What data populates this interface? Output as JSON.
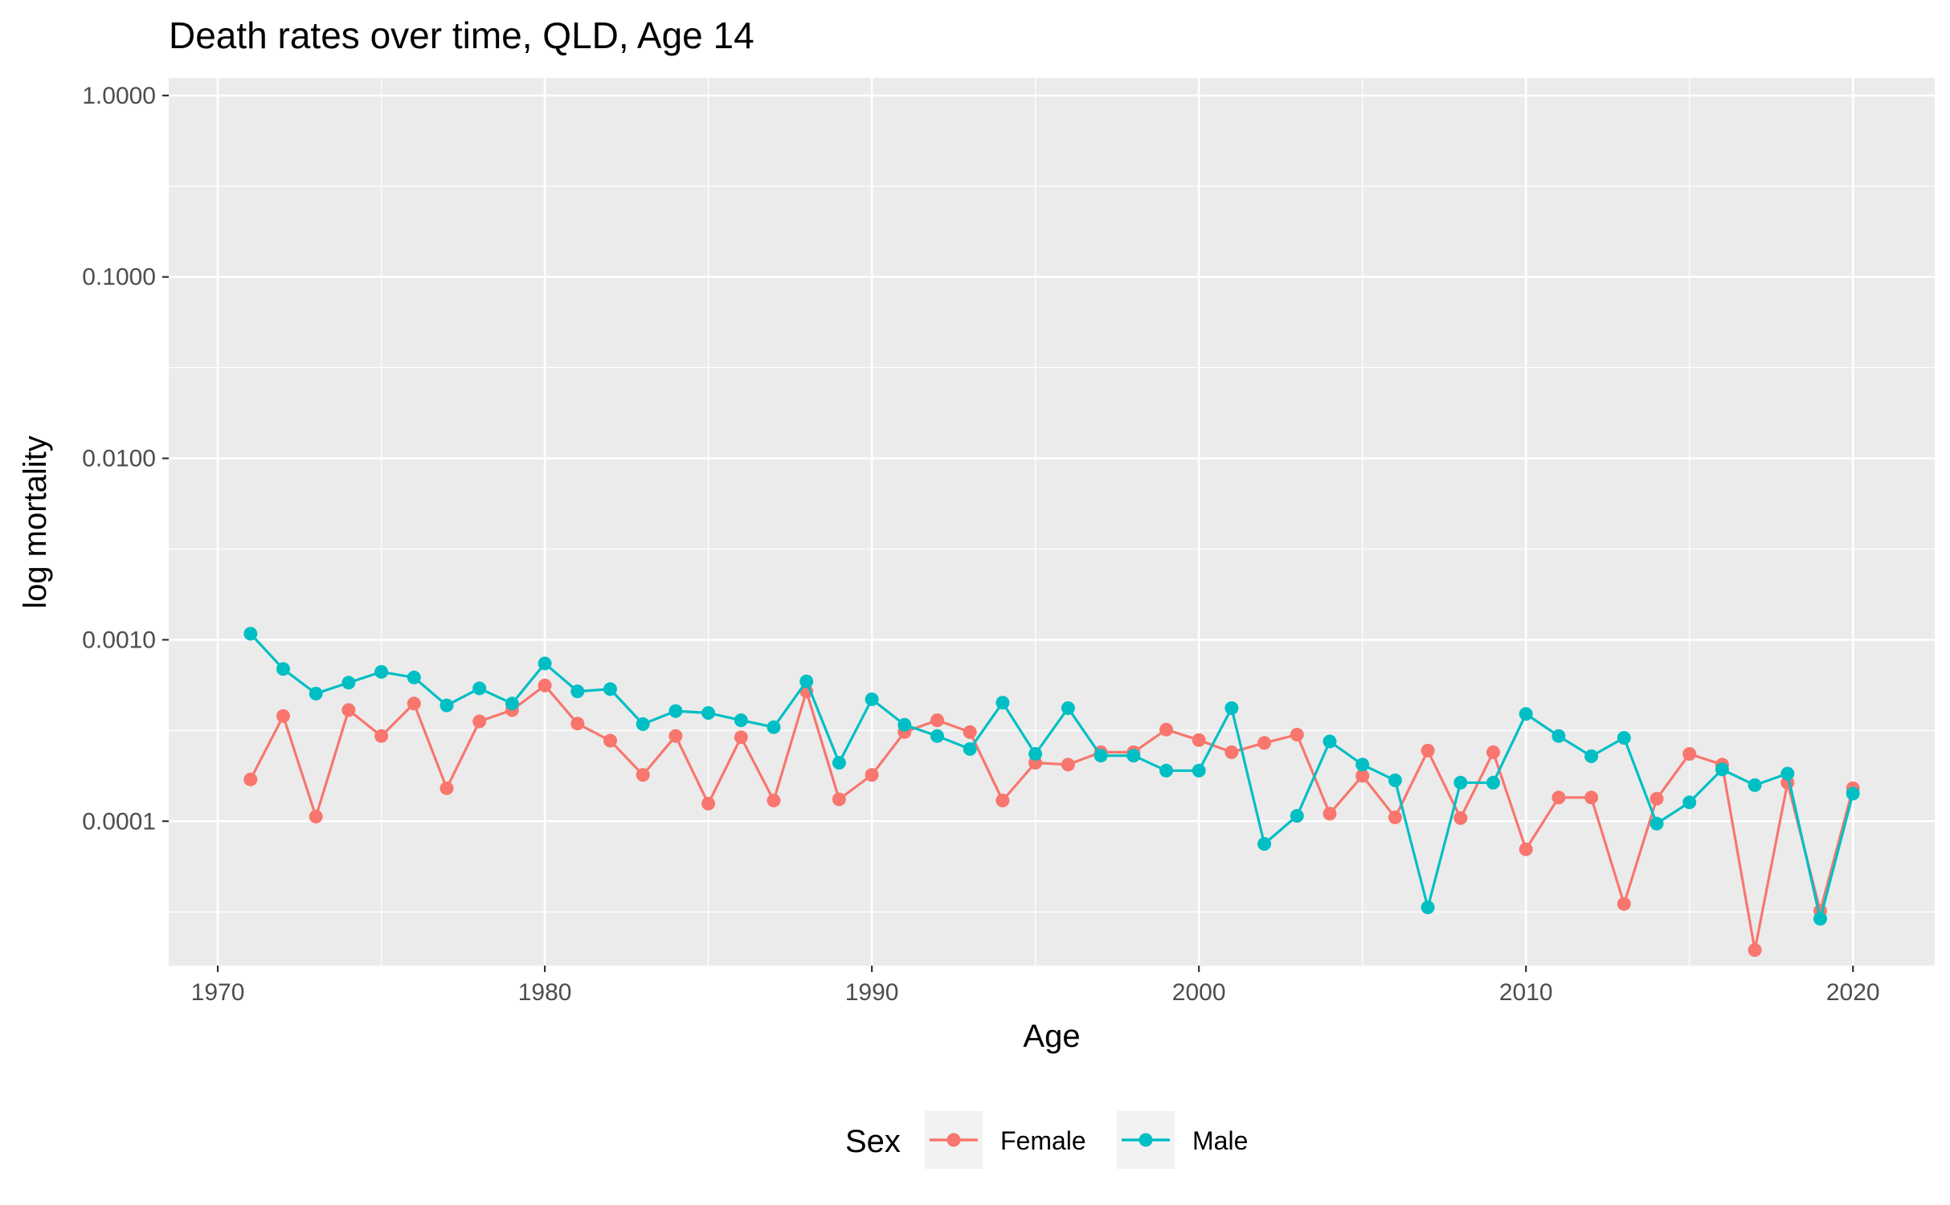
{
  "chart_data": {
    "type": "line",
    "title": "Death rates over time, QLD, Age 14",
    "xlabel": "Age",
    "ylabel": "log mortality",
    "y_scale": "log10",
    "xlim": [
      1968.5,
      2022.5
    ],
    "ylim": [
      1.6e-05,
      1.25
    ],
    "x_ticks": [
      1970,
      1980,
      1990,
      2000,
      2010,
      2020
    ],
    "x_tick_labels": [
      "1970",
      "1980",
      "1990",
      "2000",
      "2010",
      "2020"
    ],
    "y_ticks": [
      0.0001,
      0.001,
      0.01,
      0.1,
      1
    ],
    "y_tick_labels": [
      "0.0001",
      "0.0010",
      "0.0100",
      "0.1000",
      "1.0000"
    ],
    "grid": true,
    "legend": {
      "title": "Sex",
      "position": "bottom"
    },
    "x": [
      1971,
      1972,
      1973,
      1974,
      1975,
      1976,
      1977,
      1978,
      1979,
      1980,
      1981,
      1982,
      1983,
      1984,
      1985,
      1986,
      1987,
      1988,
      1989,
      1990,
      1991,
      1992,
      1993,
      1994,
      1995,
      1996,
      1997,
      1998,
      1999,
      2000,
      2001,
      2002,
      2003,
      2004,
      2005,
      2006,
      2007,
      2008,
      2009,
      2010,
      2011,
      2012,
      2013,
      2014,
      2015,
      2016,
      2017,
      2018,
      2019,
      2020
    ],
    "series": [
      {
        "name": "Female",
        "color": "#F8766D",
        "values": [
          0.00017,
          0.00038,
          0.000106,
          0.00041,
          0.000295,
          0.000445,
          0.000152,
          0.000355,
          0.00041,
          0.00056,
          0.000345,
          0.000278,
          0.00018,
          0.000295,
          0.000125,
          0.00029,
          0.00013,
          0.00052,
          0.000132,
          0.00018,
          0.00031,
          0.00036,
          0.00031,
          0.00013,
          0.00021,
          0.000205,
          0.00024,
          0.00024,
          0.00032,
          0.00028,
          0.00024,
          0.00027,
          0.0003,
          0.00011,
          0.000178,
          0.000105,
          0.000245,
          0.000104,
          0.00024,
          7e-05,
          0.000135,
          0.000135,
          3.5e-05,
          0.000133,
          0.000235,
          0.000205,
          1.95e-05,
          0.000163,
          3.2e-05,
          0.000152
        ]
      },
      {
        "name": "Male",
        "color": "#00BFC4",
        "values": [
          0.00108,
          0.00069,
          0.000505,
          0.00058,
          0.000665,
          0.00062,
          0.000435,
          0.00054,
          0.000445,
          0.00074,
          0.00052,
          0.000535,
          0.000343,
          0.000405,
          0.000395,
          0.00036,
          0.00033,
          0.00059,
          0.00021,
          0.00047,
          0.00034,
          0.000295,
          0.00025,
          0.00045,
          0.000235,
          0.00042,
          0.00023,
          0.00023,
          0.00019,
          0.00019,
          0.00042,
          7.5e-05,
          0.000107,
          0.000275,
          0.000205,
          0.000168,
          3.35e-05,
          0.000163,
          0.000163,
          0.00039,
          0.000295,
          0.000228,
          0.000288,
          9.7e-05,
          0.000127,
          0.000193,
          0.000158,
          0.000183,
          2.9e-05,
          0.000142
        ]
      }
    ]
  }
}
